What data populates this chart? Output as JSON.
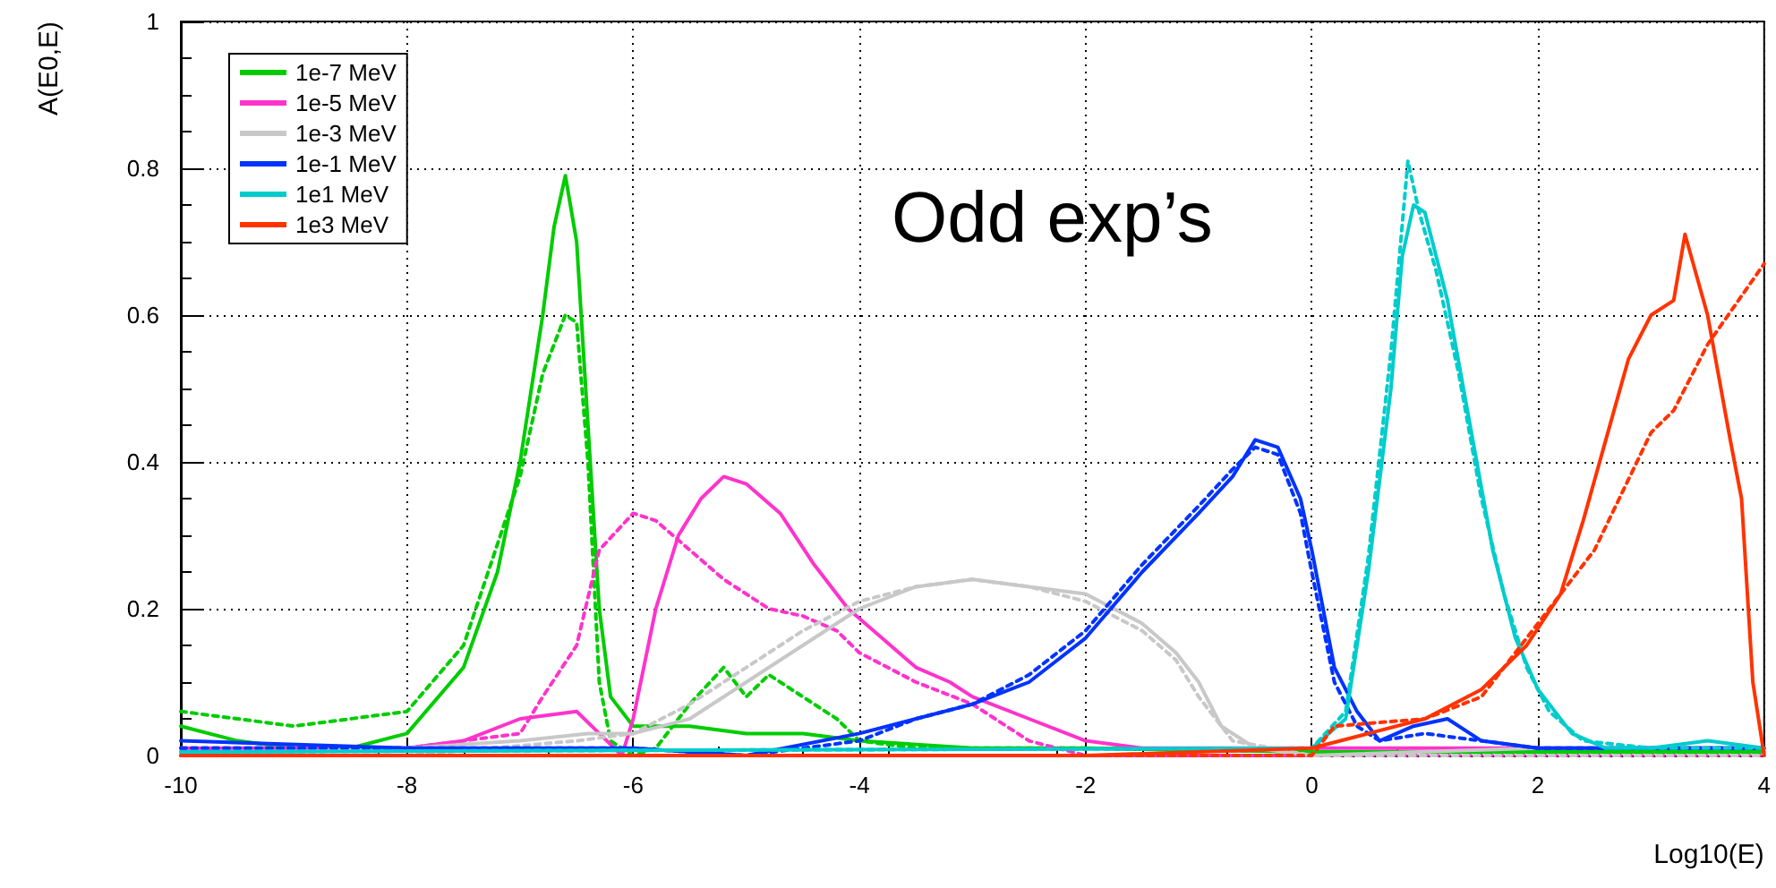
{
  "chart_data": {
    "type": "line",
    "xlabel": "Log10(E)",
    "ylabel": "A(E0,E)",
    "annotations": [
      "Odd exp’s"
    ],
    "xlim": [
      -10,
      4
    ],
    "xticks": [
      -10,
      -8,
      -6,
      -4,
      -2,
      0,
      2,
      4
    ],
    "ylim": [
      0,
      1
    ],
    "yticks": [
      0,
      0.2,
      0.4,
      0.6,
      0.8,
      1
    ],
    "grid": true,
    "legend": "top left",
    "marker": "none",
    "line_style": "solid",
    "series": [
      {
        "name": "1e-7 MeV",
        "color": "#00cc00",
        "x": [
          -10,
          -9.5,
          -9,
          -8.5,
          -8,
          -7.5,
          -7.2,
          -7,
          -6.8,
          -6.7,
          -6.6,
          -6.5,
          -6.4,
          -6.3,
          -6.2,
          -6,
          -5.5,
          -5,
          -4.5,
          -4,
          -3,
          -2,
          0,
          2,
          4
        ],
        "values": [
          0.04,
          0.02,
          0.01,
          0.01,
          0.03,
          0.12,
          0.25,
          0.4,
          0.6,
          0.72,
          0.79,
          0.7,
          0.45,
          0.2,
          0.08,
          0.04,
          0.04,
          0.03,
          0.03,
          0.02,
          0.01,
          0.01,
          0.005,
          0.005,
          0.005
        ]
      },
      {
        "color": "#00cc00",
        "line_style": "dashed",
        "x": [
          -10,
          -9.5,
          -9,
          -8.5,
          -8,
          -7.5,
          -7,
          -6.8,
          -6.6,
          -6.5,
          -6.4,
          -6.3,
          -6.2,
          -6,
          -5.8,
          -5.5,
          -5.2,
          -5,
          -4.8,
          -4.5,
          -4.2,
          -4,
          -3.5,
          -3,
          -2,
          0,
          4
        ],
        "values": [
          0.06,
          0.05,
          0.04,
          0.05,
          0.06,
          0.15,
          0.38,
          0.52,
          0.6,
          0.59,
          0.4,
          0.1,
          0.02,
          0,
          0.01,
          0.07,
          0.12,
          0.08,
          0.11,
          0.08,
          0.05,
          0.02,
          0.01,
          0.01,
          0.01,
          0.005,
          0.005
        ]
      },
      {
        "name": "1e-5 MeV",
        "color": "#ff33cc",
        "x": [
          -10,
          -8,
          -7.5,
          -7,
          -6.5,
          -6.3,
          -6.1,
          -6,
          -5.8,
          -5.6,
          -5.4,
          -5.2,
          -5,
          -4.7,
          -4.4,
          -4.1,
          -3.8,
          -3.5,
          -3.2,
          -3,
          -2.5,
          -2,
          -1.5,
          0,
          4
        ],
        "values": [
          0.01,
          0.01,
          0.02,
          0.05,
          0.06,
          0.03,
          0,
          0.05,
          0.2,
          0.3,
          0.35,
          0.38,
          0.37,
          0.33,
          0.26,
          0.2,
          0.16,
          0.12,
          0.1,
          0.08,
          0.05,
          0.02,
          0.01,
          0.01,
          0.01
        ]
      },
      {
        "color": "#ff33cc",
        "line_style": "dashed",
        "x": [
          -10,
          -8,
          -7,
          -6.8,
          -6.5,
          -6.3,
          -6,
          -5.8,
          -5.5,
          -5.2,
          -5,
          -4.8,
          -4.5,
          -4.2,
          -4,
          -3.5,
          -3,
          -2.5,
          -2,
          0,
          4
        ],
        "values": [
          0.01,
          0.01,
          0.03,
          0.08,
          0.15,
          0.28,
          0.33,
          0.32,
          0.28,
          0.24,
          0.22,
          0.2,
          0.19,
          0.17,
          0.14,
          0.1,
          0.07,
          0.02,
          0,
          0,
          0
        ]
      },
      {
        "name": "1e-3 MeV",
        "color": "#c8c8c8",
        "x": [
          -10,
          -8,
          -7,
          -6.4,
          -6,
          -5.5,
          -5,
          -4.5,
          -4,
          -3.5,
          -3,
          -2.5,
          -2,
          -1.5,
          -1.2,
          -1,
          -0.8,
          -0.5,
          0,
          2,
          4
        ],
        "values": [
          0,
          0.01,
          0.02,
          0.03,
          0.03,
          0.05,
          0.1,
          0.15,
          0.2,
          0.23,
          0.24,
          0.23,
          0.22,
          0.18,
          0.14,
          0.1,
          0.04,
          0.01,
          0,
          0.01,
          0.01
        ]
      },
      {
        "color": "#c8c8c8",
        "line_style": "dashed",
        "x": [
          -10,
          -8,
          -6.5,
          -6,
          -5.5,
          -5,
          -4.5,
          -4,
          -3.5,
          -3,
          -2.5,
          -2,
          -1.5,
          -1.2,
          -1,
          -0.7,
          0,
          4
        ],
        "values": [
          0,
          0,
          0.02,
          0.03,
          0.07,
          0.12,
          0.17,
          0.21,
          0.23,
          0.24,
          0.23,
          0.21,
          0.17,
          0.13,
          0.08,
          0.02,
          0,
          0
        ]
      },
      {
        "name": "1e-1 MeV",
        "color": "#0033ff",
        "x": [
          -10,
          -8,
          -6,
          -5,
          -4,
          -3.5,
          -3,
          -2.5,
          -2,
          -1.5,
          -1,
          -0.7,
          -0.5,
          -0.3,
          -0.1,
          0,
          0.2,
          0.4,
          0.6,
          0.9,
          1.2,
          1.5,
          2,
          3,
          4
        ],
        "values": [
          0.02,
          0.01,
          0.01,
          0,
          0.03,
          0.05,
          0.07,
          0.1,
          0.16,
          0.25,
          0.33,
          0.38,
          0.43,
          0.42,
          0.35,
          0.28,
          0.12,
          0.06,
          0.02,
          0.04,
          0.05,
          0.02,
          0.01,
          0.01,
          0.01
        ]
      },
      {
        "color": "#0033ff",
        "line_style": "dashed",
        "x": [
          -10,
          -8,
          -6,
          -5,
          -4,
          -3.5,
          -3,
          -2.5,
          -2,
          -1.5,
          -1,
          -0.7,
          -0.5,
          -0.3,
          -0.1,
          0,
          0.2,
          0.4,
          0.6,
          1,
          1.5,
          2,
          4
        ],
        "values": [
          0.01,
          0.01,
          0.01,
          0,
          0.02,
          0.05,
          0.07,
          0.11,
          0.17,
          0.26,
          0.34,
          0.39,
          0.42,
          0.41,
          0.33,
          0.25,
          0.1,
          0.04,
          0.02,
          0.03,
          0.02,
          0.01,
          0.01
        ]
      },
      {
        "name": "1e1 MeV",
        "color": "#00cccc",
        "x": [
          -10,
          0,
          0.3,
          0.5,
          0.7,
          0.8,
          0.9,
          1,
          1.2,
          1.4,
          1.6,
          1.8,
          2,
          2.3,
          2.6,
          3,
          3.5,
          4
        ],
        "values": [
          0.005,
          0.01,
          0.05,
          0.25,
          0.5,
          0.68,
          0.75,
          0.74,
          0.62,
          0.45,
          0.28,
          0.16,
          0.09,
          0.03,
          0.01,
          0.01,
          0.02,
          0.01
        ]
      },
      {
        "color": "#00cccc",
        "line_style": "dashed",
        "x": [
          -10,
          0,
          0.3,
          0.5,
          0.7,
          0.85,
          0.95,
          1.1,
          1.3,
          1.5,
          1.7,
          1.9,
          2.1,
          2.4,
          3,
          4
        ],
        "values": [
          0.005,
          0.01,
          0.06,
          0.27,
          0.55,
          0.81,
          0.74,
          0.66,
          0.52,
          0.35,
          0.22,
          0.12,
          0.06,
          0.02,
          0.01,
          0.01
        ]
      },
      {
        "name": "1e3 MeV",
        "color": "#ff3300",
        "x": [
          -10,
          -2,
          0,
          0.5,
          1,
          1.5,
          1.9,
          2.2,
          2.4,
          2.6,
          2.8,
          3,
          3.2,
          3.3,
          3.5,
          3.7,
          3.8,
          3.9,
          4
        ],
        "values": [
          0,
          0,
          0.01,
          0.03,
          0.05,
          0.09,
          0.15,
          0.22,
          0.32,
          0.43,
          0.54,
          0.6,
          0.62,
          0.71,
          0.6,
          0.43,
          0.35,
          0.1,
          0
        ]
      },
      {
        "color": "#ff3300",
        "line_style": "dashed",
        "x": [
          -10,
          0,
          0.2,
          1,
          1.5,
          2,
          2.5,
          3,
          3.2,
          3.5,
          4
        ],
        "values": [
          0,
          0,
          0.04,
          0.05,
          0.08,
          0.18,
          0.28,
          0.44,
          0.47,
          0.56,
          0.67
        ]
      }
    ]
  }
}
